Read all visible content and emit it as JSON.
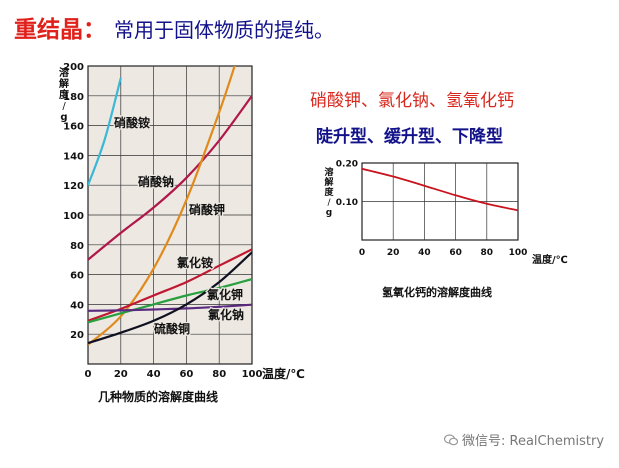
{
  "header": {
    "title": "重结晶：",
    "subtitle": "常用于固体物质的提纯。"
  },
  "side": {
    "line1": "硝酸钾、氯化钠、氢氧化钙",
    "line2": "陡升型、缓升型、下降型"
  },
  "watermark": {
    "icon": "wechat-icon",
    "text": "微信号: RealChemistry"
  },
  "chart_data": [
    {
      "type": "line",
      "title": "",
      "caption": "几种物质的溶解度曲线",
      "xlabel": "温度/℃",
      "ylabel": "溶解度/g",
      "xlim": [
        0,
        100
      ],
      "ylim": [
        0,
        200
      ],
      "xticks": [
        0,
        20,
        40,
        60,
        80,
        100
      ],
      "yticks": [
        20,
        40,
        60,
        80,
        100,
        120,
        140,
        160,
        180,
        200
      ],
      "grid": true,
      "series": [
        {
          "name": "硝酸铵",
          "color": "#3ab8d8",
          "x": [
            0,
            10,
            20
          ],
          "y": [
            120,
            150,
            192
          ]
        },
        {
          "name": "硝酸钠",
          "color": "#b0184a",
          "x": [
            0,
            20,
            40,
            60,
            80,
            100
          ],
          "y": [
            70,
            88,
            105,
            125,
            150,
            180
          ]
        },
        {
          "name": "硝酸钾",
          "color": "#e08a1c",
          "x": [
            0,
            20,
            40,
            60,
            80,
            90
          ],
          "y": [
            13,
            32,
            64,
            110,
            169,
            202
          ]
        },
        {
          "name": "氯化铵",
          "color": "#c01830",
          "x": [
            0,
            20,
            40,
            60,
            80,
            100
          ],
          "y": [
            29,
            37,
            46,
            55,
            66,
            77
          ]
        },
        {
          "name": "氯化钾",
          "color": "#28a040",
          "x": [
            0,
            20,
            40,
            60,
            80,
            100
          ],
          "y": [
            28,
            34,
            40,
            46,
            51,
            57
          ]
        },
        {
          "name": "氯化钠",
          "color": "#5a2a80",
          "x": [
            0,
            20,
            40,
            60,
            80,
            100
          ],
          "y": [
            35.7,
            36.0,
            36.6,
            37.3,
            38.4,
            39.8
          ]
        },
        {
          "name": "硫酸铜",
          "color": "#101020",
          "x": [
            0,
            20,
            40,
            60,
            80,
            100
          ],
          "y": [
            14,
            21,
            29,
            40,
            55,
            75
          ]
        }
      ]
    },
    {
      "type": "line",
      "title": "",
      "caption": "氢氧化钙的溶解度曲线",
      "xlabel": "温度/℃",
      "ylabel": "溶解度/g",
      "xlim": [
        0,
        100
      ],
      "ylim": [
        0,
        0.2
      ],
      "xticks": [
        0,
        20,
        40,
        60,
        80,
        100
      ],
      "yticks": [
        0.1,
        0.2
      ],
      "grid": true,
      "series": [
        {
          "name": "",
          "color": "#c8141e",
          "x": [
            0,
            20,
            40,
            60,
            80,
            100
          ],
          "y": [
            0.185,
            0.165,
            0.141,
            0.116,
            0.094,
            0.077
          ]
        }
      ]
    }
  ]
}
